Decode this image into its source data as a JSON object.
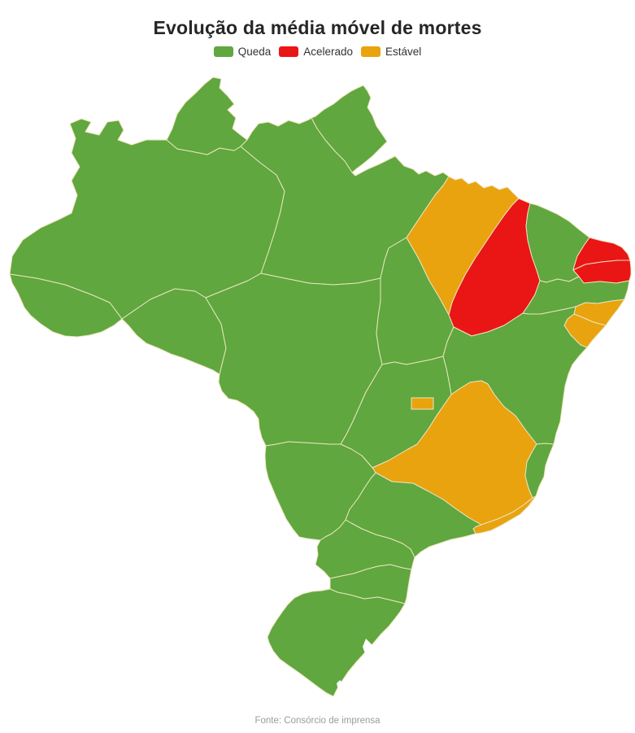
{
  "title": "Evolução da média móvel de mortes",
  "source": "Fonte: Consórcio de imprensa",
  "legend": [
    {
      "key": "queda",
      "label": "Queda",
      "color": "#5fa73e"
    },
    {
      "key": "acelerado",
      "label": "Acelerado",
      "color": "#ea1515"
    },
    {
      "key": "estavel",
      "label": "Estável",
      "color": "#e9a30f"
    }
  ],
  "map": {
    "border_color": "#ece4bd",
    "water_color": "#ffffff",
    "states": [
      {
        "id": "AC",
        "name": "Acre",
        "status": "Queda"
      },
      {
        "id": "AM",
        "name": "Amazonas",
        "status": "Queda"
      },
      {
        "id": "RR",
        "name": "Roraima",
        "status": "Queda"
      },
      {
        "id": "AP",
        "name": "Amapá",
        "status": "Queda"
      },
      {
        "id": "PA",
        "name": "Pará",
        "status": "Queda"
      },
      {
        "id": "RO",
        "name": "Rondônia",
        "status": "Queda"
      },
      {
        "id": "MT",
        "name": "Mato Grosso",
        "status": "Queda"
      },
      {
        "id": "TO",
        "name": "Tocantins",
        "status": "Queda"
      },
      {
        "id": "MA",
        "name": "Maranhão",
        "status": "Estável"
      },
      {
        "id": "PI",
        "name": "Piauí",
        "status": "Acelerado"
      },
      {
        "id": "CE",
        "name": "Ceará",
        "status": "Queda"
      },
      {
        "id": "RN",
        "name": "Rio Grande do Norte",
        "status": "Acelerado"
      },
      {
        "id": "PB",
        "name": "Paraíba",
        "status": "Acelerado"
      },
      {
        "id": "PE",
        "name": "Pernambuco",
        "status": "Queda"
      },
      {
        "id": "AL",
        "name": "Alagoas",
        "status": "Estável"
      },
      {
        "id": "SE",
        "name": "Sergipe",
        "status": "Estável"
      },
      {
        "id": "BA",
        "name": "Bahia",
        "status": "Queda"
      },
      {
        "id": "GO",
        "name": "Goiás",
        "status": "Queda"
      },
      {
        "id": "DF",
        "name": "Distrito Federal",
        "status": "Estável"
      },
      {
        "id": "MG",
        "name": "Minas Gerais",
        "status": "Estável"
      },
      {
        "id": "ES",
        "name": "Espírito Santo",
        "status": "Queda"
      },
      {
        "id": "RJ",
        "name": "Rio de Janeiro",
        "status": "Estável"
      },
      {
        "id": "SP",
        "name": "São Paulo",
        "status": "Queda"
      },
      {
        "id": "MS",
        "name": "Mato Grosso do Sul",
        "status": "Queda"
      },
      {
        "id": "PR",
        "name": "Paraná",
        "status": "Queda"
      },
      {
        "id": "SC",
        "name": "Santa Catarina",
        "status": "Queda"
      },
      {
        "id": "RS",
        "name": "Rio Grande do Sul",
        "status": "Queda"
      }
    ]
  },
  "chart_data": {
    "type": "choropleth",
    "title": "Evolução da média móvel de mortes",
    "legend": [
      "Queda",
      "Acelerado",
      "Estável"
    ],
    "series": [
      {
        "name": "Queda",
        "color": "#5fa73e",
        "states": [
          "AC",
          "AM",
          "RR",
          "AP",
          "PA",
          "RO",
          "MT",
          "TO",
          "CE",
          "PE",
          "BA",
          "GO",
          "ES",
          "SP",
          "MS",
          "PR",
          "SC",
          "RS"
        ]
      },
      {
        "name": "Acelerado",
        "color": "#ea1515",
        "states": [
          "PI",
          "RN",
          "PB"
        ]
      },
      {
        "name": "Estável",
        "color": "#e9a30f",
        "states": [
          "MA",
          "AL",
          "SE",
          "MG",
          "DF",
          "RJ"
        ]
      }
    ],
    "source": "Fonte: Consórcio de imprensa"
  }
}
